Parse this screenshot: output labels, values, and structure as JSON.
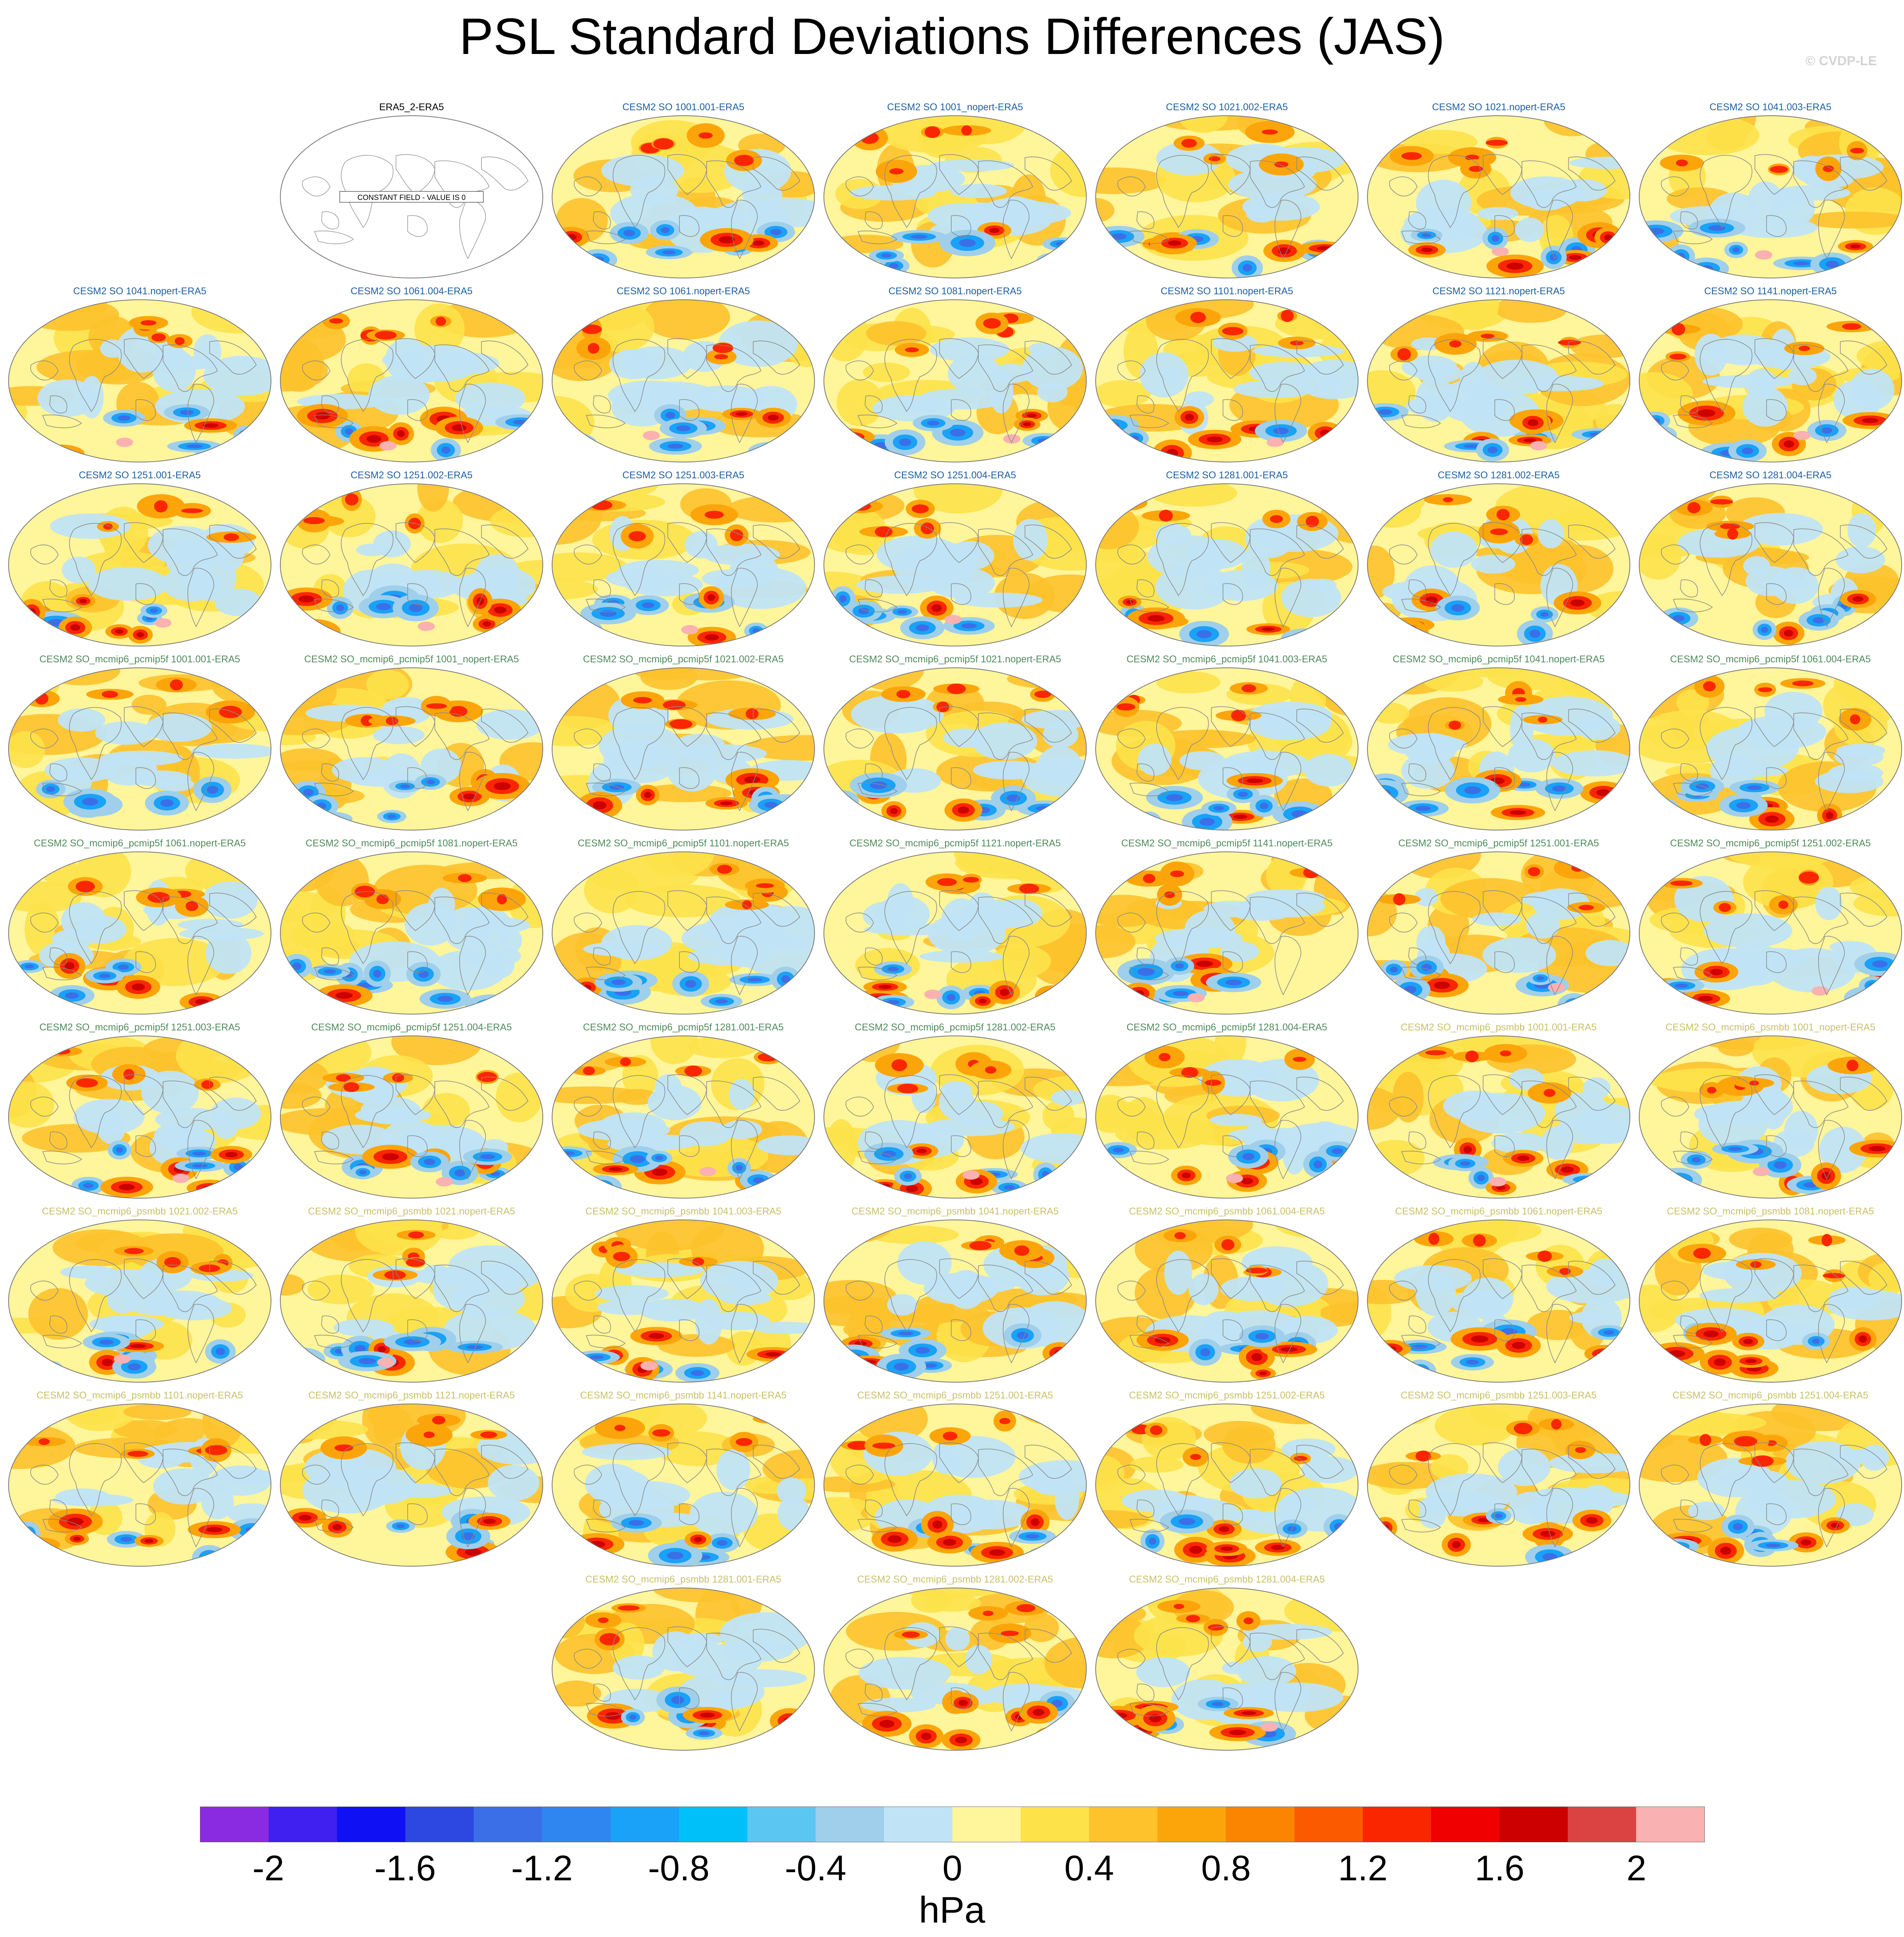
{
  "title": "PSL Standard Deviations Differences (JAS)",
  "watermark": "© CVDP-LE",
  "constant_field_label": "CONSTANT FIELD - VALUE IS 0",
  "colors": {
    "group_so": "#1f5fa0",
    "group_pcmip5f": "#4f8a5a",
    "group_psmbb": "#c8bf6a",
    "obs": "#000000",
    "coastline": "#8a8a8a",
    "map_base": "#fff59a"
  },
  "panels": [
    {
      "label": "ERA5_2-ERA5",
      "group": "obs",
      "constant": true
    },
    {
      "label": "CESM2 SO 1001.001-ERA5",
      "group": "so"
    },
    {
      "label": "CESM2 SO 1001_nopert-ERA5",
      "group": "so"
    },
    {
      "label": "CESM2 SO 1021.002-ERA5",
      "group": "so"
    },
    {
      "label": "CESM2 SO 1021.nopert-ERA5",
      "group": "so"
    },
    {
      "label": "CESM2 SO 1041.003-ERA5",
      "group": "so"
    },
    {
      "label": "CESM2 SO 1041.nopert-ERA5",
      "group": "so"
    },
    {
      "label": "CESM2 SO 1061.004-ERA5",
      "group": "so"
    },
    {
      "label": "CESM2 SO 1061.nopert-ERA5",
      "group": "so"
    },
    {
      "label": "CESM2 SO 1081.nopert-ERA5",
      "group": "so"
    },
    {
      "label": "CESM2 SO 1101.nopert-ERA5",
      "group": "so"
    },
    {
      "label": "CESM2 SO 1121.nopert-ERA5",
      "group": "so"
    },
    {
      "label": "CESM2 SO 1141.nopert-ERA5",
      "group": "so"
    },
    {
      "label": "CESM2 SO 1251.001-ERA5",
      "group": "so"
    },
    {
      "label": "CESM2 SO 1251.002-ERA5",
      "group": "so"
    },
    {
      "label": "CESM2 SO 1251.003-ERA5",
      "group": "so"
    },
    {
      "label": "CESM2 SO 1251.004-ERA5",
      "group": "so"
    },
    {
      "label": "CESM2 SO 1281.001-ERA5",
      "group": "so"
    },
    {
      "label": "CESM2 SO 1281.002-ERA5",
      "group": "so"
    },
    {
      "label": "CESM2 SO 1281.004-ERA5",
      "group": "so"
    },
    {
      "label": "CESM2 SO_mcmip6_pcmip5f 1001.001-ERA5",
      "group": "pcmip5f"
    },
    {
      "label": "CESM2 SO_mcmip6_pcmip5f 1001_nopert-ERA5",
      "group": "pcmip5f"
    },
    {
      "label": "CESM2 SO_mcmip6_pcmip5f 1021.002-ERA5",
      "group": "pcmip5f"
    },
    {
      "label": "CESM2 SO_mcmip6_pcmip5f 1021.nopert-ERA5",
      "group": "pcmip5f"
    },
    {
      "label": "CESM2 SO_mcmip6_pcmip5f 1041.003-ERA5",
      "group": "pcmip5f"
    },
    {
      "label": "CESM2 SO_mcmip6_pcmip5f 1041.nopert-ERA5",
      "group": "pcmip5f"
    },
    {
      "label": "CESM2 SO_mcmip6_pcmip5f 1061.004-ERA5",
      "group": "pcmip5f"
    },
    {
      "label": "CESM2 SO_mcmip6_pcmip5f 1061.nopert-ERA5",
      "group": "pcmip5f"
    },
    {
      "label": "CESM2 SO_mcmip6_pcmip5f 1081.nopert-ERA5",
      "group": "pcmip5f"
    },
    {
      "label": "CESM2 SO_mcmip6_pcmip5f 1101.nopert-ERA5",
      "group": "pcmip5f"
    },
    {
      "label": "CESM2 SO_mcmip6_pcmip5f 1121.nopert-ERA5",
      "group": "pcmip5f"
    },
    {
      "label": "CESM2 SO_mcmip6_pcmip5f 1141.nopert-ERA5",
      "group": "pcmip5f"
    },
    {
      "label": "CESM2 SO_mcmip6_pcmip5f 1251.001-ERA5",
      "group": "pcmip5f"
    },
    {
      "label": "CESM2 SO_mcmip6_pcmip5f 1251.002-ERA5",
      "group": "pcmip5f"
    },
    {
      "label": "CESM2 SO_mcmip6_pcmip5f 1251.003-ERA5",
      "group": "pcmip5f"
    },
    {
      "label": "CESM2 SO_mcmip6_pcmip5f 1251.004-ERA5",
      "group": "pcmip5f"
    },
    {
      "label": "CESM2 SO_mcmip6_pcmip5f 1281.001-ERA5",
      "group": "pcmip5f"
    },
    {
      "label": "CESM2 SO_mcmip6_pcmip5f 1281.002-ERA5",
      "group": "pcmip5f"
    },
    {
      "label": "CESM2 SO_mcmip6_pcmip5f 1281.004-ERA5",
      "group": "pcmip5f"
    },
    {
      "label": "CESM2 SO_mcmip6_psmbb 1001.001-ERA5",
      "group": "psmbb"
    },
    {
      "label": "CESM2 SO_mcmip6_psmbb 1001_nopert-ERA5",
      "group": "psmbb"
    },
    {
      "label": "CESM2 SO_mcmip6_psmbb 1021.002-ERA5",
      "group": "psmbb"
    },
    {
      "label": "CESM2 SO_mcmip6_psmbb 1021.nopert-ERA5",
      "group": "psmbb"
    },
    {
      "label": "CESM2 SO_mcmip6_psmbb 1041.003-ERA5",
      "group": "psmbb"
    },
    {
      "label": "CESM2 SO_mcmip6_psmbb 1041.nopert-ERA5",
      "group": "psmbb"
    },
    {
      "label": "CESM2 SO_mcmip6_psmbb 1061.004-ERA5",
      "group": "psmbb"
    },
    {
      "label": "CESM2 SO_mcmip6_psmbb 1061.nopert-ERA5",
      "group": "psmbb"
    },
    {
      "label": "CESM2 SO_mcmip6_psmbb 1081.nopert-ERA5",
      "group": "psmbb"
    },
    {
      "label": "CESM2 SO_mcmip6_psmbb 1101.nopert-ERA5",
      "group": "psmbb"
    },
    {
      "label": "CESM2 SO_mcmip6_psmbb 1121.nopert-ERA5",
      "group": "psmbb"
    },
    {
      "label": "CESM2 SO_mcmip6_psmbb 1141.nopert-ERA5",
      "group": "psmbb"
    },
    {
      "label": "CESM2 SO_mcmip6_psmbb 1251.001-ERA5",
      "group": "psmbb"
    },
    {
      "label": "CESM2 SO_mcmip6_psmbb 1251.002-ERA5",
      "group": "psmbb"
    },
    {
      "label": "CESM2 SO_mcmip6_psmbb 1251.003-ERA5",
      "group": "psmbb"
    },
    {
      "label": "CESM2 SO_mcmip6_psmbb 1251.004-ERA5",
      "group": "psmbb"
    },
    {
      "label": "CESM2 SO_mcmip6_psmbb 1281.001-ERA5",
      "group": "psmbb"
    },
    {
      "label": "CESM2 SO_mcmip6_psmbb 1281.002-ERA5",
      "group": "psmbb"
    },
    {
      "label": "CESM2 SO_mcmip6_psmbb 1281.004-ERA5",
      "group": "psmbb"
    }
  ],
  "colorbar": {
    "units": "hPa",
    "colors": [
      "#8a2be2",
      "#4020f0",
      "#1010f5",
      "#2c48e0",
      "#3b6fe8",
      "#2f86f0",
      "#19a2f7",
      "#00c0f9",
      "#5cc6f2",
      "#9fcfea",
      "#c0e4f5",
      "#fff59a",
      "#fde24a",
      "#fdc22c",
      "#fca50a",
      "#fb8400",
      "#fb5a00",
      "#fa2600",
      "#f00000",
      "#cc0000",
      "#db4343",
      "#f9b1b1"
    ],
    "tick_labels": [
      "-2",
      "-1.6",
      "-1.2",
      "-0.8",
      "-0.4",
      "0",
      "0.4",
      "0.8",
      "1.2",
      "1.6",
      "2"
    ]
  }
}
